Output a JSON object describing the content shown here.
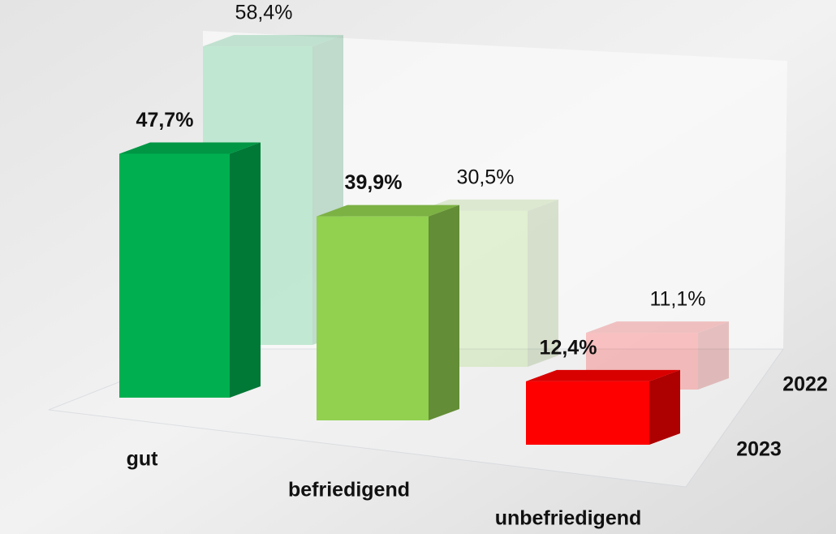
{
  "chart_data": {
    "type": "bar3d",
    "categories": [
      "gut",
      "befriedigend",
      "unbefriedigend"
    ],
    "series": [
      {
        "name": "2022",
        "colors": [
          "#00b050",
          "#92d050",
          "#ff0000"
        ],
        "opacity": 0.22,
        "values": [
          58.4,
          30.5,
          11.1
        ],
        "value_labels": [
          "58,4%",
          "30,5%",
          "11,1%"
        ]
      },
      {
        "name": "2023",
        "colors": [
          "#00b050",
          "#92d050",
          "#ff0000"
        ],
        "opacity": 1,
        "values": [
          47.7,
          39.9,
          12.4
        ],
        "value_labels": [
          "47,7%",
          "39,9%",
          "12,4%"
        ]
      }
    ]
  }
}
